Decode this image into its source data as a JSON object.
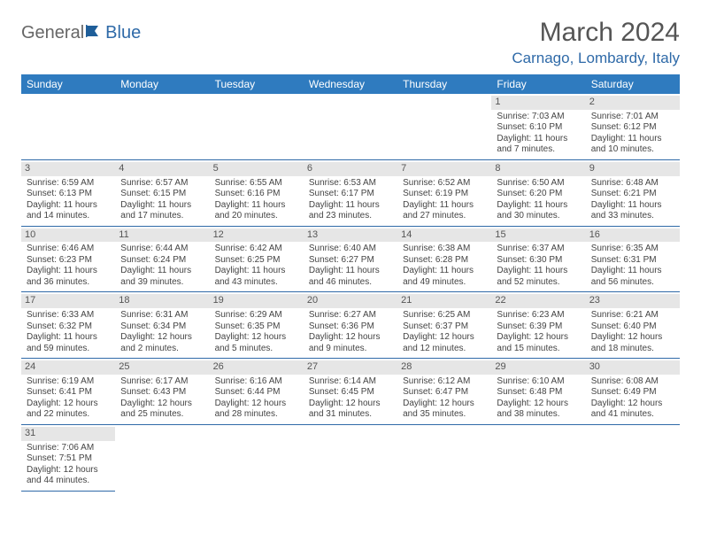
{
  "logo": {
    "part1": "General",
    "part2": "Blue"
  },
  "title": "March 2024",
  "location": "Carnago, Lombardy, Italy",
  "colors": {
    "header_bg": "#2f7bbf",
    "header_text": "#ffffff",
    "accent": "#2f6aa8",
    "daynum_bg": "#e6e6e6",
    "text": "#444444",
    "title_color": "#555555"
  },
  "fonts": {
    "body_pt": 10,
    "header_pt": 12,
    "title_pt": 30,
    "location_pt": 17
  },
  "headers": [
    "Sunday",
    "Monday",
    "Tuesday",
    "Wednesday",
    "Thursday",
    "Friday",
    "Saturday"
  ],
  "weeks": [
    [
      null,
      null,
      null,
      null,
      null,
      {
        "n": "1",
        "sr": "Sunrise: 7:03 AM",
        "ss": "Sunset: 6:10 PM",
        "dl1": "Daylight: 11 hours",
        "dl2": "and 7 minutes."
      },
      {
        "n": "2",
        "sr": "Sunrise: 7:01 AM",
        "ss": "Sunset: 6:12 PM",
        "dl1": "Daylight: 11 hours",
        "dl2": "and 10 minutes."
      }
    ],
    [
      {
        "n": "3",
        "sr": "Sunrise: 6:59 AM",
        "ss": "Sunset: 6:13 PM",
        "dl1": "Daylight: 11 hours",
        "dl2": "and 14 minutes."
      },
      {
        "n": "4",
        "sr": "Sunrise: 6:57 AM",
        "ss": "Sunset: 6:15 PM",
        "dl1": "Daylight: 11 hours",
        "dl2": "and 17 minutes."
      },
      {
        "n": "5",
        "sr": "Sunrise: 6:55 AM",
        "ss": "Sunset: 6:16 PM",
        "dl1": "Daylight: 11 hours",
        "dl2": "and 20 minutes."
      },
      {
        "n": "6",
        "sr": "Sunrise: 6:53 AM",
        "ss": "Sunset: 6:17 PM",
        "dl1": "Daylight: 11 hours",
        "dl2": "and 23 minutes."
      },
      {
        "n": "7",
        "sr": "Sunrise: 6:52 AM",
        "ss": "Sunset: 6:19 PM",
        "dl1": "Daylight: 11 hours",
        "dl2": "and 27 minutes."
      },
      {
        "n": "8",
        "sr": "Sunrise: 6:50 AM",
        "ss": "Sunset: 6:20 PM",
        "dl1": "Daylight: 11 hours",
        "dl2": "and 30 minutes."
      },
      {
        "n": "9",
        "sr": "Sunrise: 6:48 AM",
        "ss": "Sunset: 6:21 PM",
        "dl1": "Daylight: 11 hours",
        "dl2": "and 33 minutes."
      }
    ],
    [
      {
        "n": "10",
        "sr": "Sunrise: 6:46 AM",
        "ss": "Sunset: 6:23 PM",
        "dl1": "Daylight: 11 hours",
        "dl2": "and 36 minutes."
      },
      {
        "n": "11",
        "sr": "Sunrise: 6:44 AM",
        "ss": "Sunset: 6:24 PM",
        "dl1": "Daylight: 11 hours",
        "dl2": "and 39 minutes."
      },
      {
        "n": "12",
        "sr": "Sunrise: 6:42 AM",
        "ss": "Sunset: 6:25 PM",
        "dl1": "Daylight: 11 hours",
        "dl2": "and 43 minutes."
      },
      {
        "n": "13",
        "sr": "Sunrise: 6:40 AM",
        "ss": "Sunset: 6:27 PM",
        "dl1": "Daylight: 11 hours",
        "dl2": "and 46 minutes."
      },
      {
        "n": "14",
        "sr": "Sunrise: 6:38 AM",
        "ss": "Sunset: 6:28 PM",
        "dl1": "Daylight: 11 hours",
        "dl2": "and 49 minutes."
      },
      {
        "n": "15",
        "sr": "Sunrise: 6:37 AM",
        "ss": "Sunset: 6:30 PM",
        "dl1": "Daylight: 11 hours",
        "dl2": "and 52 minutes."
      },
      {
        "n": "16",
        "sr": "Sunrise: 6:35 AM",
        "ss": "Sunset: 6:31 PM",
        "dl1": "Daylight: 11 hours",
        "dl2": "and 56 minutes."
      }
    ],
    [
      {
        "n": "17",
        "sr": "Sunrise: 6:33 AM",
        "ss": "Sunset: 6:32 PM",
        "dl1": "Daylight: 11 hours",
        "dl2": "and 59 minutes."
      },
      {
        "n": "18",
        "sr": "Sunrise: 6:31 AM",
        "ss": "Sunset: 6:34 PM",
        "dl1": "Daylight: 12 hours",
        "dl2": "and 2 minutes."
      },
      {
        "n": "19",
        "sr": "Sunrise: 6:29 AM",
        "ss": "Sunset: 6:35 PM",
        "dl1": "Daylight: 12 hours",
        "dl2": "and 5 minutes."
      },
      {
        "n": "20",
        "sr": "Sunrise: 6:27 AM",
        "ss": "Sunset: 6:36 PM",
        "dl1": "Daylight: 12 hours",
        "dl2": "and 9 minutes."
      },
      {
        "n": "21",
        "sr": "Sunrise: 6:25 AM",
        "ss": "Sunset: 6:37 PM",
        "dl1": "Daylight: 12 hours",
        "dl2": "and 12 minutes."
      },
      {
        "n": "22",
        "sr": "Sunrise: 6:23 AM",
        "ss": "Sunset: 6:39 PM",
        "dl1": "Daylight: 12 hours",
        "dl2": "and 15 minutes."
      },
      {
        "n": "23",
        "sr": "Sunrise: 6:21 AM",
        "ss": "Sunset: 6:40 PM",
        "dl1": "Daylight: 12 hours",
        "dl2": "and 18 minutes."
      }
    ],
    [
      {
        "n": "24",
        "sr": "Sunrise: 6:19 AM",
        "ss": "Sunset: 6:41 PM",
        "dl1": "Daylight: 12 hours",
        "dl2": "and 22 minutes."
      },
      {
        "n": "25",
        "sr": "Sunrise: 6:17 AM",
        "ss": "Sunset: 6:43 PM",
        "dl1": "Daylight: 12 hours",
        "dl2": "and 25 minutes."
      },
      {
        "n": "26",
        "sr": "Sunrise: 6:16 AM",
        "ss": "Sunset: 6:44 PM",
        "dl1": "Daylight: 12 hours",
        "dl2": "and 28 minutes."
      },
      {
        "n": "27",
        "sr": "Sunrise: 6:14 AM",
        "ss": "Sunset: 6:45 PM",
        "dl1": "Daylight: 12 hours",
        "dl2": "and 31 minutes."
      },
      {
        "n": "28",
        "sr": "Sunrise: 6:12 AM",
        "ss": "Sunset: 6:47 PM",
        "dl1": "Daylight: 12 hours",
        "dl2": "and 35 minutes."
      },
      {
        "n": "29",
        "sr": "Sunrise: 6:10 AM",
        "ss": "Sunset: 6:48 PM",
        "dl1": "Daylight: 12 hours",
        "dl2": "and 38 minutes."
      },
      {
        "n": "30",
        "sr": "Sunrise: 6:08 AM",
        "ss": "Sunset: 6:49 PM",
        "dl1": "Daylight: 12 hours",
        "dl2": "and 41 minutes."
      }
    ],
    [
      {
        "n": "31",
        "sr": "Sunrise: 7:06 AM",
        "ss": "Sunset: 7:51 PM",
        "dl1": "Daylight: 12 hours",
        "dl2": "and 44 minutes."
      },
      null,
      null,
      null,
      null,
      null,
      null
    ]
  ]
}
